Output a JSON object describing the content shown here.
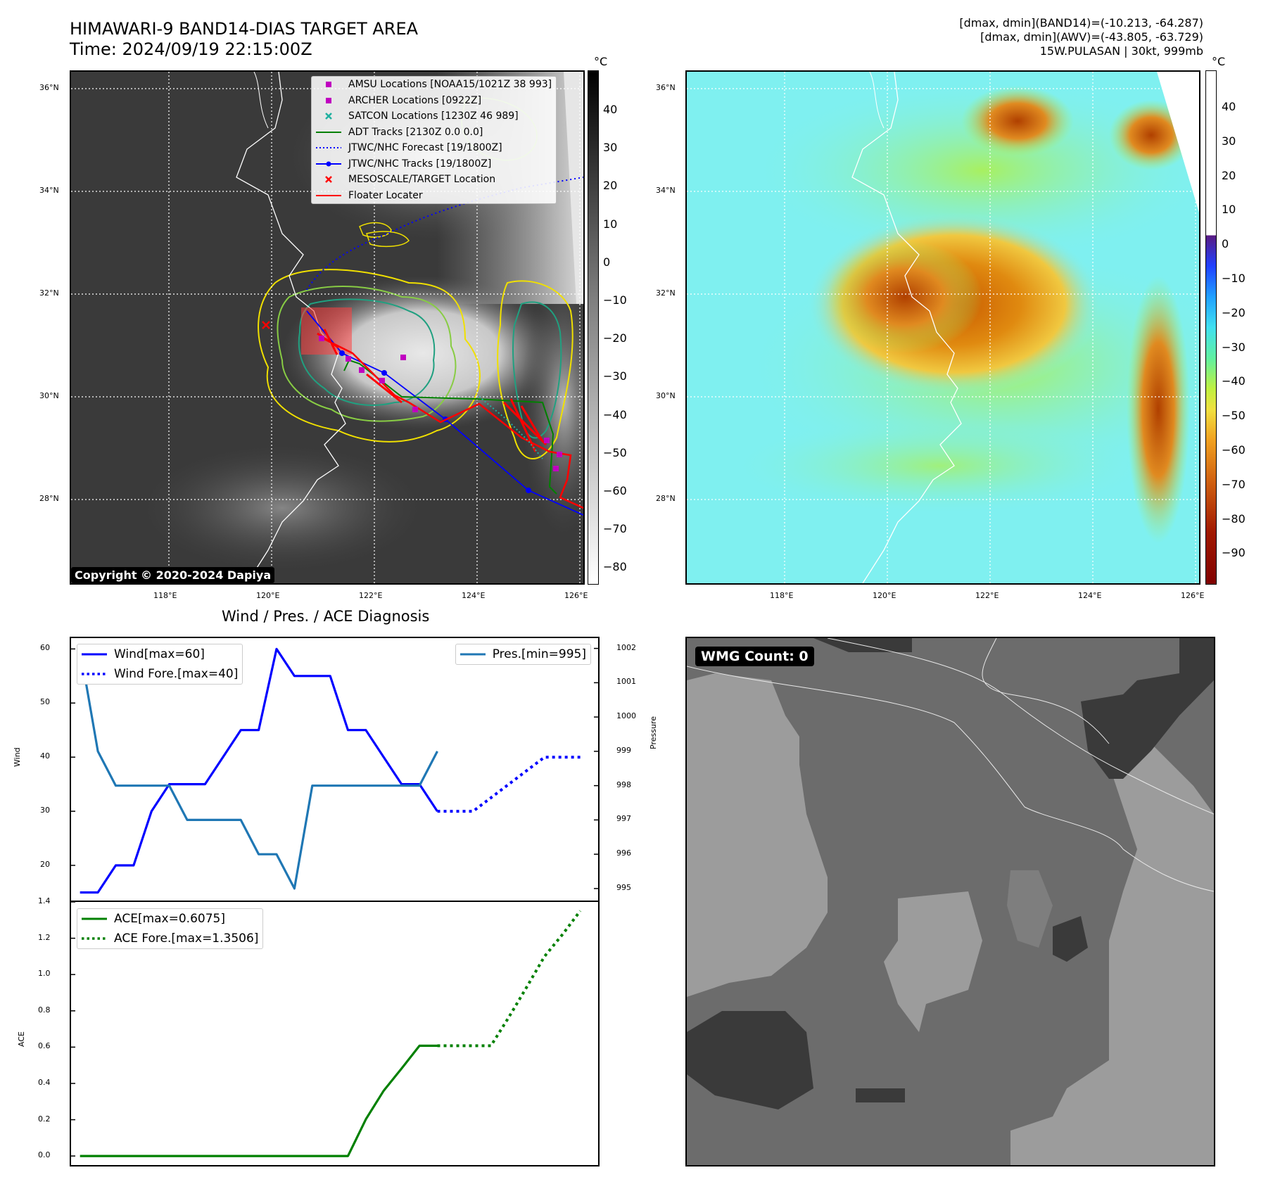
{
  "header": {
    "title_line1": "HIMAWARI-9 BAND14-DIAS TARGET AREA",
    "title_line2": "Time: 2024/09/19 22:15:00Z",
    "dmax_band14": "[dmax, dmin](BAND14)=(-10.213, -64.287)",
    "dmax_awv": "[dmax, dmin](AWV)=(-43.805, -63.729)",
    "storm_info": "15W.PULASAN | 30kt, 999mb"
  },
  "map_axes": {
    "lat_labels": [
      "36°N",
      "34°N",
      "32°N",
      "30°N",
      "28°N"
    ],
    "lon_labels": [
      "118°E",
      "120°E",
      "122°E",
      "124°E",
      "126°E"
    ]
  },
  "ir_panel": {
    "copyright": "Copyright © 2020-2024 Dapiya",
    "colorbar_unit": "°C",
    "colorbar_ticks": [
      "40",
      "30",
      "20",
      "10",
      "0",
      "−10",
      "−20",
      "−30",
      "−40",
      "−50",
      "−60",
      "−70",
      "−80"
    ],
    "legend": [
      {
        "label": "AMSU Locations [NOAA15/1021Z 38 993]",
        "color": "#c000c0",
        "symbol": "square"
      },
      {
        "label": "ARCHER Locations [0922Z]",
        "color": "#c000c0",
        "symbol": "square"
      },
      {
        "label": "SATCON Locations [1230Z 46 989]",
        "color": "#20b0a0",
        "symbol": "x"
      },
      {
        "label": "ADT Tracks [2130Z 0.0 0.0]",
        "color": "#008000",
        "symbol": "line"
      },
      {
        "label": "JTWC/NHC Forecast [19/1800Z]",
        "color": "#0000ff",
        "symbol": "dotted"
      },
      {
        "label": "JTWC/NHC Tracks [19/1800Z]",
        "color": "#0000ff",
        "symbol": "line-dot"
      },
      {
        "label": "MESOSCALE/TARGET Location",
        "color": "#ff0000",
        "symbol": "x"
      },
      {
        "label": "Floater Locater",
        "color": "#ff0000",
        "symbol": "line"
      }
    ]
  },
  "awv_panel": {
    "colorbar_unit": "°C",
    "colorbar_ticks": [
      "40",
      "30",
      "20",
      "10",
      "0",
      "−10",
      "−20",
      "−30",
      "−40",
      "−50",
      "−60",
      "−70",
      "−80",
      "−90"
    ]
  },
  "wmg_panel": {
    "label": "WMG Count: 0"
  },
  "chart_data": [
    {
      "type": "line",
      "title": "Wind / Pres. / ACE Diagnosis",
      "ylabel": "Wind",
      "y2label": "Pressure",
      "ylim": [
        13.5,
        62
      ],
      "y2lim": [
        994.65,
        1002.3
      ],
      "yticks": [
        "60",
        "50",
        "40",
        "30",
        "20"
      ],
      "y2ticks": [
        "1002",
        "1001",
        "1000",
        "999",
        "998",
        "997",
        "996",
        "995"
      ],
      "series": [
        {
          "name": "Wind[max=60]",
          "color": "#0000ff",
          "style": "solid",
          "x": [
            0,
            1,
            2,
            3,
            4,
            5,
            6,
            7,
            8,
            9,
            10,
            11,
            12,
            13,
            14,
            15,
            16,
            17,
            18,
            19,
            20
          ],
          "values": [
            15,
            15,
            20,
            20,
            30,
            35,
            35,
            35,
            40,
            45,
            45,
            60,
            55,
            55,
            55,
            45,
            45,
            40,
            35,
            35,
            30
          ]
        },
        {
          "name": "Wind Fore.[max=40]",
          "color": "#0000ff",
          "style": "dotted",
          "x": [
            20,
            21,
            22,
            23,
            24,
            25,
            26,
            27,
            28
          ],
          "values": [
            30,
            30,
            30,
            32.5,
            35,
            37.5,
            40,
            40,
            40
          ]
        },
        {
          "name": "Pres.[min=995]",
          "color": "#1f77b4",
          "style": "solid",
          "axis": "right",
          "x": [
            0,
            1,
            2,
            3,
            4,
            5,
            6,
            7,
            8,
            9,
            10,
            11,
            12,
            13,
            14,
            15,
            16,
            17,
            18,
            19,
            20
          ],
          "values": [
            1002,
            999,
            998,
            998,
            998,
            998,
            997,
            997,
            997,
            997,
            996,
            996,
            995,
            998,
            998,
            998,
            998,
            998,
            998,
            998,
            999
          ]
        }
      ]
    },
    {
      "type": "line",
      "ylabel": "ACE",
      "ylim": [
        -0.05,
        1.4
      ],
      "yticks": [
        "1.4",
        "1.2",
        "1.0",
        "0.8",
        "0.6",
        "0.4",
        "0.2",
        "0.0"
      ],
      "series": [
        {
          "name": "ACE[max=0.6075]",
          "color": "#008000",
          "style": "solid",
          "x": [
            0,
            1,
            2,
            3,
            4,
            5,
            6,
            7,
            8,
            9,
            10,
            11,
            12,
            13,
            14,
            15,
            16,
            17,
            18,
            19,
            20
          ],
          "values": [
            0,
            0,
            0,
            0,
            0,
            0,
            0,
            0,
            0,
            0,
            0,
            0,
            0,
            0,
            0,
            0,
            0.2025,
            0.36,
            0.4825,
            0.6075,
            0.6075
          ]
        },
        {
          "name": "ACE Fore.[max=1.3506]",
          "color": "#008000",
          "style": "dotted",
          "x": [
            20,
            21,
            22,
            23,
            24,
            25,
            26,
            27,
            28
          ],
          "values": [
            0.6075,
            0.6075,
            0.6075,
            0.6075,
            0.765,
            0.93,
            1.1,
            1.22,
            1.3506
          ]
        }
      ]
    }
  ]
}
